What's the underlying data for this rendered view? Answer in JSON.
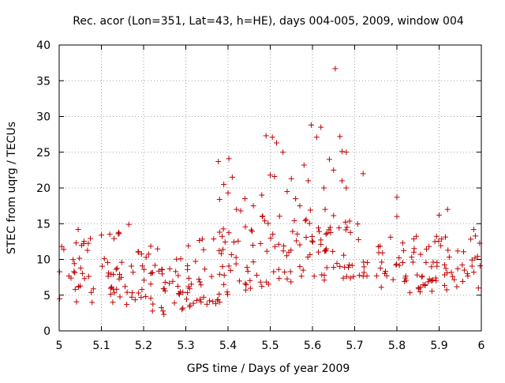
{
  "chart_data": {
    "type": "scatter",
    "title": "Rec. acor (Lon=351, Lat=43, h=HE), days 004-005, 2009, window 004",
    "xlabel": "GPS time / Days of year 2009",
    "ylabel": "STEC from uqrg / TECUs",
    "xlim": [
      5,
      6
    ],
    "ylim": [
      0,
      40
    ],
    "xticks": [
      "5",
      "5.1",
      "5.2",
      "5.3",
      "5.4",
      "5.5",
      "5.6",
      "5.7",
      "5.8",
      "5.9",
      "6"
    ],
    "yticks": [
      "0",
      "5",
      "10",
      "15",
      "20",
      "25",
      "30",
      "35",
      "40"
    ],
    "grid": true,
    "marker": "+",
    "color": "#c00000",
    "x": [],
    "y": []
  }
}
